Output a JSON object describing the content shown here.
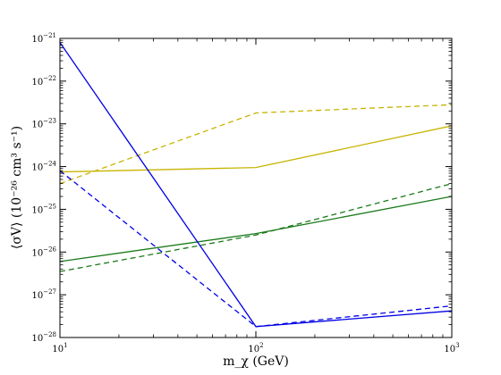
{
  "chart_data": {
    "type": "line",
    "title": "",
    "xlabel": "m_χ (GeV)",
    "ylabel": "⟨σV⟩ (10⁻²⁶ cm³ s⁻¹)",
    "xscale": "log",
    "yscale": "log",
    "xlim": [
      10,
      1000
    ],
    "ylim": [
      1e-28,
      1e-21
    ],
    "x_ticks": [
      {
        "value": 10,
        "mantissa": "10",
        "exponent": "1"
      },
      {
        "value": 100,
        "mantissa": "10",
        "exponent": "2"
      },
      {
        "value": 1000,
        "mantissa": "10",
        "exponent": "3"
      }
    ],
    "y_ticks": [
      {
        "value": 1e-28,
        "mantissa": "10",
        "exponent": "−28"
      },
      {
        "value": 1e-27,
        "mantissa": "10",
        "exponent": "−27"
      },
      {
        "value": 1e-26,
        "mantissa": "10",
        "exponent": "−26"
      },
      {
        "value": 1e-25,
        "mantissa": "10",
        "exponent": "−25"
      },
      {
        "value": 1e-24,
        "mantissa": "10",
        "exponent": "−24"
      },
      {
        "value": 1e-23,
        "mantissa": "10",
        "exponent": "−23"
      },
      {
        "value": 1e-22,
        "mantissa": "10",
        "exponent": "−22"
      },
      {
        "value": 1e-21,
        "mantissa": "10",
        "exponent": "−21"
      }
    ],
    "grid": false,
    "legend": "none",
    "series": [
      {
        "color": "#c8b400",
        "dash": "solid",
        "x": [
          10,
          100,
          1000
        ],
        "y": [
          7.5e-25,
          9.5e-25,
          9e-24
        ]
      },
      {
        "color": "#c8b400",
        "dash": "dashed",
        "x": [
          10,
          100,
          1000
        ],
        "y": [
          4e-25,
          1.8e-23,
          2.8e-23
        ]
      },
      {
        "color": "#1a7a1a",
        "dash": "solid",
        "x": [
          10,
          100,
          1000
        ],
        "y": [
          6e-27,
          2.7e-26,
          2e-25
        ]
      },
      {
        "color": "#1a7a1a",
        "dash": "dashed",
        "x": [
          10,
          100,
          1000
        ],
        "y": [
          3.5e-27,
          2.5e-26,
          4e-25
        ]
      },
      {
        "color": "#0000e6",
        "dash": "solid",
        "x": [
          10,
          100,
          1000
        ],
        "y": [
          8e-22,
          1.8e-28,
          4.2e-28
        ]
      },
      {
        "color": "#0000e6",
        "dash": "dashed",
        "x": [
          10,
          100,
          1000
        ],
        "y": [
          8e-25,
          1.8e-28,
          5.5e-28
        ]
      }
    ]
  }
}
